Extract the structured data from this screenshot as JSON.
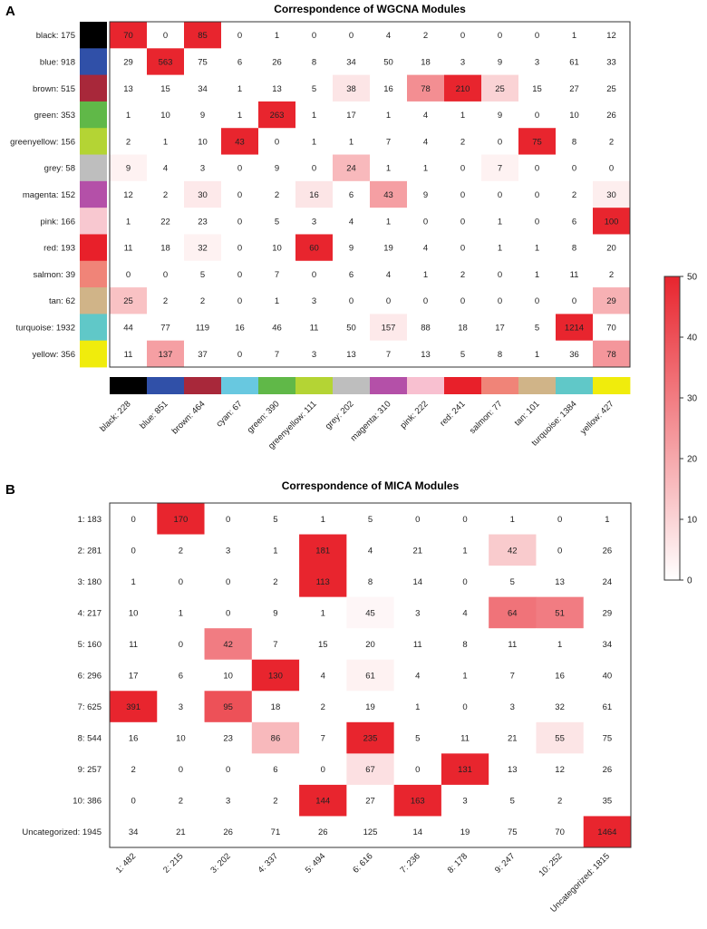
{
  "chart_data": [
    {
      "type": "heatmap",
      "panel_label": "A",
      "title": "Correspondence of WGCNA Modules",
      "row_labels": [
        "black: 175",
        "blue: 918",
        "brown: 515",
        "green: 353",
        "greenyellow: 156",
        "grey: 58",
        "magenta: 152",
        "pink: 166",
        "red: 193",
        "salmon: 39",
        "tan: 62",
        "turquoise: 1932",
        "yellow: 356"
      ],
      "row_colors": [
        "#000000",
        "#3050a8",
        "#a8283a",
        "#60b848",
        "#b4d434",
        "#bebebe",
        "#b450a8",
        "#f8c8d0",
        "#e8202a",
        "#f08478",
        "#d0b488",
        "#60c8c8",
        "#f0ec0c"
      ],
      "col_labels": [
        "black: 228",
        "blue: 851",
        "brown: 464",
        "cyan: 67",
        "green: 390",
        "greenyellow: 111",
        "grey: 202",
        "magenta: 310",
        "pink: 222",
        "red: 241",
        "salmon: 77",
        "tan: 101",
        "turquoise: 1384",
        "yellow: 427"
      ],
      "col_colors": [
        "#000000",
        "#3050a8",
        "#a8283a",
        "#68c8e0",
        "#60b848",
        "#b4d434",
        "#bebebe",
        "#b450a8",
        "#f8c0d0",
        "#e8202a",
        "#f08478",
        "#d0b488",
        "#60c8c8",
        "#f0ec0c"
      ],
      "values": [
        [
          70,
          0,
          85,
          0,
          1,
          0,
          0,
          4,
          2,
          0,
          0,
          0,
          1,
          12
        ],
        [
          29,
          563,
          75,
          6,
          26,
          8,
          34,
          50,
          18,
          3,
          9,
          3,
          61,
          33
        ],
        [
          13,
          15,
          34,
          1,
          13,
          5,
          38,
          16,
          78,
          210,
          25,
          15,
          27,
          25
        ],
        [
          1,
          10,
          9,
          1,
          263,
          1,
          17,
          1,
          4,
          1,
          9,
          0,
          10,
          26
        ],
        [
          2,
          1,
          10,
          43,
          0,
          1,
          1,
          7,
          4,
          2,
          0,
          75,
          8,
          2
        ],
        [
          9,
          4,
          3,
          0,
          9,
          0,
          24,
          1,
          1,
          0,
          7,
          0,
          0,
          0
        ],
        [
          12,
          2,
          30,
          0,
          2,
          16,
          6,
          43,
          9,
          0,
          0,
          0,
          2,
          30
        ],
        [
          1,
          22,
          23,
          0,
          5,
          3,
          4,
          1,
          0,
          0,
          1,
          0,
          6,
          100
        ],
        [
          11,
          18,
          32,
          0,
          10,
          60,
          9,
          19,
          4,
          0,
          1,
          1,
          8,
          20
        ],
        [
          0,
          0,
          5,
          0,
          7,
          0,
          6,
          4,
          1,
          2,
          0,
          1,
          11,
          2
        ],
        [
          25,
          2,
          2,
          0,
          1,
          3,
          0,
          0,
          0,
          0,
          0,
          0,
          0,
          29
        ],
        [
          44,
          77,
          119,
          16,
          46,
          11,
          50,
          157,
          88,
          18,
          17,
          5,
          1214,
          70
        ],
        [
          11,
          137,
          37,
          0,
          7,
          3,
          13,
          7,
          13,
          5,
          8,
          1,
          36,
          78
        ]
      ],
      "shade": [
        [
          50,
          0,
          50,
          0,
          0,
          0,
          0,
          0,
          0,
          0,
          0,
          0,
          0,
          0
        ],
        [
          0,
          50,
          0,
          0,
          0,
          0,
          0,
          0,
          0,
          0,
          0,
          0,
          0,
          0
        ],
        [
          0,
          0,
          0,
          0,
          0,
          0,
          6,
          0,
          26,
          50,
          10,
          0,
          0,
          0
        ],
        [
          0,
          0,
          0,
          0,
          50,
          0,
          0,
          0,
          0,
          0,
          0,
          0,
          0,
          0
        ],
        [
          0,
          0,
          0,
          50,
          0,
          0,
          0,
          0,
          0,
          0,
          0,
          50,
          0,
          0
        ],
        [
          3,
          0,
          0,
          0,
          0,
          0,
          16,
          0,
          0,
          0,
          3,
          0,
          0,
          0
        ],
        [
          0,
          0,
          5,
          0,
          0,
          6,
          0,
          22,
          0,
          0,
          0,
          0,
          0,
          4
        ],
        [
          0,
          0,
          0,
          0,
          0,
          0,
          0,
          0,
          0,
          0,
          0,
          0,
          0,
          50
        ],
        [
          0,
          0,
          3,
          0,
          0,
          50,
          0,
          0,
          0,
          0,
          0,
          0,
          0,
          0
        ],
        [
          0,
          0,
          0,
          0,
          0,
          0,
          0,
          0,
          0,
          0,
          0,
          0,
          0,
          0
        ],
        [
          14,
          0,
          0,
          0,
          0,
          0,
          0,
          0,
          0,
          0,
          0,
          0,
          0,
          18
        ],
        [
          0,
          0,
          0,
          0,
          0,
          0,
          0,
          5,
          0,
          0,
          0,
          0,
          50,
          0
        ],
        [
          0,
          22,
          0,
          0,
          0,
          0,
          0,
          0,
          0,
          0,
          0,
          0,
          0,
          24
        ]
      ],
      "colorbar": {
        "min": 0,
        "max": 50,
        "ticks": [
          "0",
          "10",
          "20",
          "30",
          "40",
          "50"
        ]
      }
    },
    {
      "type": "heatmap",
      "panel_label": "B",
      "title": "Correspondence of MICA Modules",
      "row_labels": [
        "1: 183",
        "2: 281",
        "3: 180",
        "4: 217",
        "5: 160",
        "6: 296",
        "7: 625",
        "8: 544",
        "9: 257",
        "10: 386",
        "Uncategorized: 1945"
      ],
      "col_labels": [
        "1: 482",
        "2: 215",
        "3: 202",
        "4: 337",
        "5: 494",
        "6: 616",
        "7: 236",
        "8: 178",
        "9: 247",
        "10: 252",
        "Uncategorized: 1815"
      ],
      "values": [
        [
          0,
          170,
          0,
          5,
          1,
          5,
          0,
          0,
          1,
          0,
          1
        ],
        [
          0,
          2,
          3,
          1,
          181,
          4,
          21,
          1,
          42,
          0,
          26
        ],
        [
          1,
          0,
          0,
          2,
          113,
          8,
          14,
          0,
          5,
          13,
          24
        ],
        [
          10,
          1,
          0,
          9,
          1,
          45,
          3,
          4,
          64,
          51,
          29
        ],
        [
          11,
          0,
          42,
          7,
          15,
          20,
          11,
          8,
          11,
          1,
          34
        ],
        [
          17,
          6,
          10,
          130,
          4,
          61,
          4,
          1,
          7,
          16,
          40
        ],
        [
          391,
          3,
          95,
          18,
          2,
          19,
          1,
          0,
          3,
          32,
          61
        ],
        [
          16,
          10,
          23,
          86,
          7,
          235,
          5,
          11,
          21,
          55,
          75
        ],
        [
          2,
          0,
          0,
          6,
          0,
          67,
          0,
          131,
          13,
          12,
          26
        ],
        [
          0,
          2,
          3,
          2,
          144,
          27,
          163,
          3,
          5,
          2,
          35
        ],
        [
          34,
          21,
          26,
          71,
          26,
          125,
          14,
          19,
          75,
          70,
          1464
        ]
      ],
      "shade": [
        [
          0,
          50,
          0,
          0,
          0,
          0,
          0,
          0,
          0,
          0,
          0
        ],
        [
          0,
          0,
          0,
          0,
          50,
          0,
          0,
          0,
          12,
          0,
          0
        ],
        [
          0,
          0,
          0,
          0,
          50,
          0,
          0,
          0,
          0,
          0,
          0
        ],
        [
          0,
          0,
          0,
          0,
          0,
          2,
          0,
          0,
          32,
          30,
          0
        ],
        [
          0,
          0,
          30,
          0,
          0,
          0,
          0,
          0,
          0,
          0,
          0
        ],
        [
          0,
          0,
          0,
          50,
          0,
          3,
          0,
          0,
          0,
          0,
          0
        ],
        [
          50,
          0,
          40,
          0,
          0,
          0,
          0,
          0,
          0,
          0,
          0
        ],
        [
          0,
          0,
          0,
          16,
          0,
          50,
          0,
          0,
          0,
          6,
          0
        ],
        [
          0,
          0,
          0,
          0,
          0,
          7,
          0,
          50,
          0,
          0,
          0
        ],
        [
          0,
          0,
          0,
          0,
          50,
          0,
          50,
          0,
          0,
          0,
          0
        ],
        [
          0,
          0,
          0,
          0,
          0,
          0,
          0,
          0,
          0,
          0,
          50
        ]
      ]
    }
  ]
}
